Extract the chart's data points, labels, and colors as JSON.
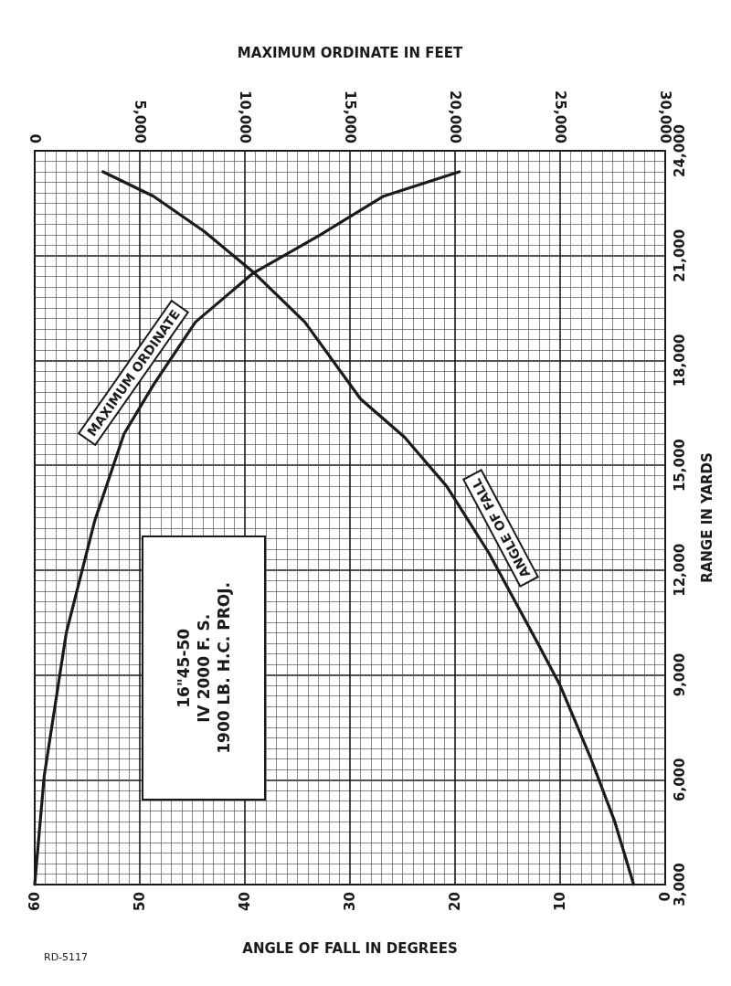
{
  "chart_data": {
    "type": "line",
    "xlabel": "ANGLE OF FALL IN DEGREES",
    "x2label": "MAXIMUM ORDINATE IN FEET",
    "ylabel": "RANGE IN YARDS",
    "xlim": [
      60,
      0
    ],
    "xticks": [
      60,
      50,
      40,
      30,
      20,
      10,
      0
    ],
    "x2lim": [
      0,
      30000
    ],
    "x2ticks": [
      0,
      {
        "value": 5000,
        "label": "5,000"
      },
      {
        "value": 10000,
        "label": "10,000"
      },
      {
        "value": 15000,
        "label": "15,000"
      },
      {
        "value": 20000,
        "label": "20,000"
      },
      {
        "value": 25000,
        "label": "25,000"
      },
      {
        "value": 30000,
        "label": "30,000"
      }
    ],
    "ylim": [
      3000,
      24000
    ],
    "yticks": [
      {
        "value": 3000,
        "label": "3,000"
      },
      {
        "value": 6000,
        "label": "6,000"
      },
      {
        "value": 9000,
        "label": "9,000"
      },
      {
        "value": 12000,
        "label": "12,000"
      },
      {
        "value": 15000,
        "label": "15,000"
      },
      {
        "value": 18000,
        "label": "18,000"
      },
      {
        "value": 21000,
        "label": "21,000"
      },
      {
        "value": 24000,
        "label": "24,000"
      }
    ],
    "grid": true,
    "marker": "none",
    "line_style": "solid",
    "series": [
      {
        "name": "ANGLE OF FALL",
        "color": "#1a1a1a",
        "x": [
          3.0,
          4.8,
          7.2,
          10.0,
          12.3,
          16.8,
          20.8,
          24.8,
          29.0,
          34.3,
          39.1,
          43.9,
          48.7,
          53.5
        ],
        "values": [
          3000,
          4800,
          6700,
          8700,
          10000,
          12500,
          14400,
          15800,
          16900,
          19100,
          20500,
          21700,
          22700,
          23400
        ]
      },
      {
        "name": "MAXIMUM ORDINATE",
        "color": "#1a1a1a",
        "axis": "x2",
        "x": [
          0,
          450,
          1500,
          2850,
          4250,
          5650,
          7650,
          10400,
          13600,
          16600,
          20200
        ],
        "values": [
          3000,
          6100,
          10200,
          13400,
          15900,
          17300,
          19100,
          20500,
          21600,
          22700,
          23400
        ]
      }
    ],
    "annotations": [
      "16\"45-50\nIV 2000 F. S.\n1900 LB. H.C. PROJ.",
      "RD-5117"
    ]
  }
}
